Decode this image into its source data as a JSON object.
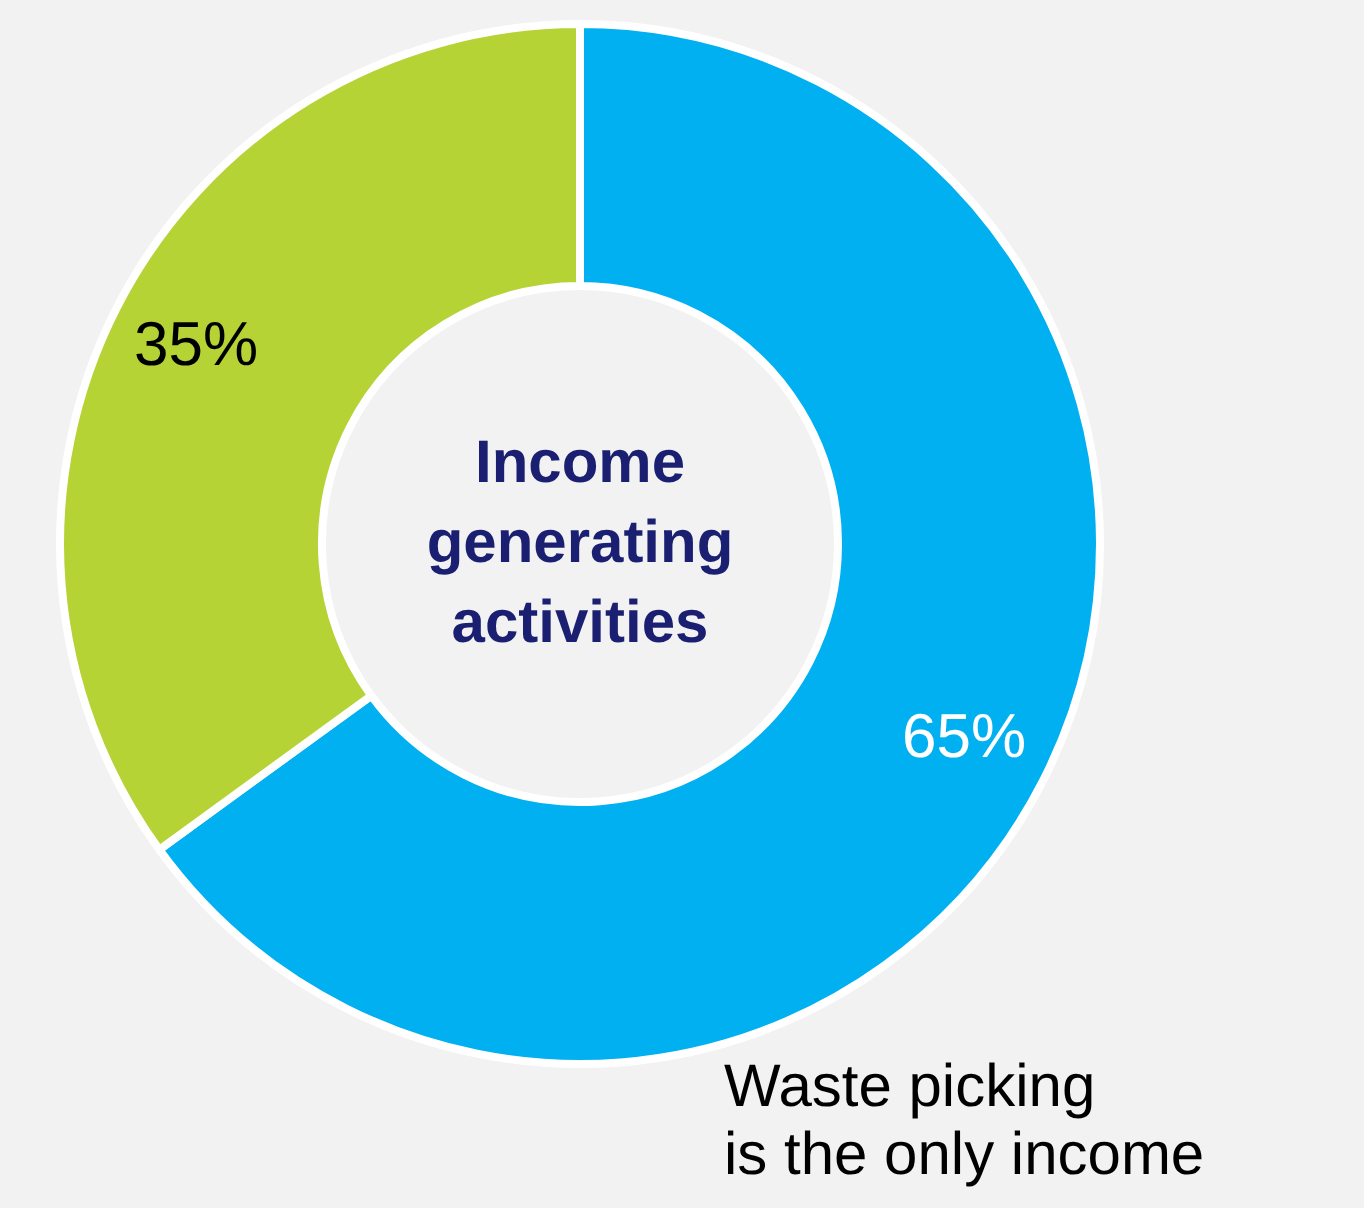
{
  "chart_data": {
    "type": "donut",
    "title": "Income generating activities",
    "categories": [
      "Waste picking\nis the only income",
      null
    ],
    "values": [
      65,
      35
    ],
    "colors": [
      "#00b0f0",
      "#b5d334"
    ],
    "value_labels": [
      "65%",
      "35%"
    ],
    "legend": false
  }
}
